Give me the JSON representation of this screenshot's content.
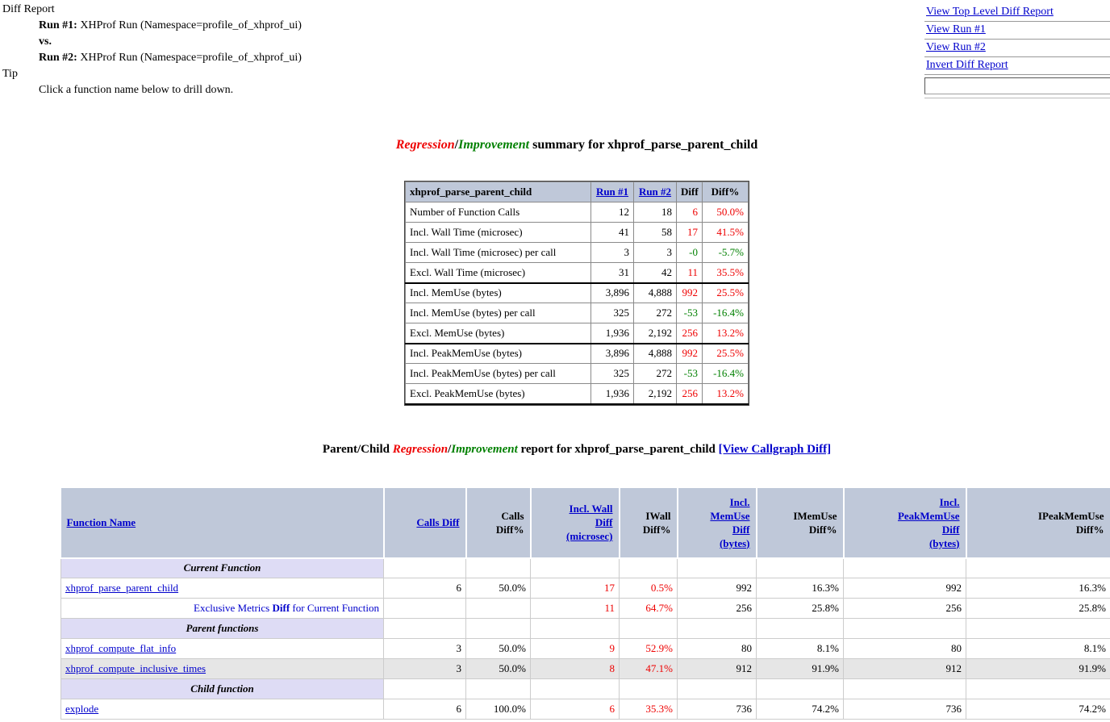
{
  "colors": {
    "link": "#0000cc",
    "red": "#ee0000",
    "green": "#008000",
    "table_header_bg": "#bfc8d9",
    "section_row_bg": "#dedcf5",
    "stripe_bg": "#e6e6e6"
  },
  "header": {
    "title": "Diff Report",
    "run1_label": "Run #1:",
    "run1_text": "XHProf Run (Namespace=profile_of_xhprof_ui)",
    "vs_label": "vs.",
    "run2_label": "Run #2:",
    "run2_text": "XHProf Run (Namespace=profile_of_xhprof_ui)",
    "tip_label": "Tip",
    "tip_text": "Click a function name below to drill down."
  },
  "nav": {
    "links": [
      "View Top Level Diff Report",
      "View Run #1",
      "View Run #2",
      "Invert Diff Report"
    ],
    "input_value": ""
  },
  "summary_title": {
    "regression": "Regression",
    "slash": "/",
    "improvement": "Improvement",
    "rest": " summary for xhprof_parse_parent_child"
  },
  "summary_table": {
    "columns": [
      {
        "label": "xhprof_parse_parent_child",
        "link": false
      },
      {
        "label": "Run #1",
        "link": true
      },
      {
        "label": "Run #2",
        "link": true
      },
      {
        "label": "Diff",
        "link": false
      },
      {
        "label": "Diff%",
        "link": false
      }
    ],
    "rows": [
      {
        "metric": "Number of Function Calls",
        "run1": "12",
        "run2": "18",
        "diff": "6",
        "diff_pct": "50.0%",
        "color": "red",
        "thick_bottom": false
      },
      {
        "metric": "Incl. Wall Time (microsec)",
        "run1": "41",
        "run2": "58",
        "diff": "17",
        "diff_pct": "41.5%",
        "color": "red",
        "thick_bottom": false
      },
      {
        "metric": "Incl. Wall Time (microsec) per call",
        "run1": "3",
        "run2": "3",
        "diff": "-0",
        "diff_pct": "-5.7%",
        "color": "green",
        "thick_bottom": false
      },
      {
        "metric": "Excl. Wall Time (microsec)",
        "run1": "31",
        "run2": "42",
        "diff": "11",
        "diff_pct": "35.5%",
        "color": "red",
        "thick_bottom": true
      },
      {
        "metric": "Incl. MemUse (bytes)",
        "run1": "3,896",
        "run2": "4,888",
        "diff": "992",
        "diff_pct": "25.5%",
        "color": "red",
        "thick_bottom": false
      },
      {
        "metric": "Incl. MemUse (bytes) per call",
        "run1": "325",
        "run2": "272",
        "diff": "-53",
        "diff_pct": "-16.4%",
        "color": "green",
        "thick_bottom": false
      },
      {
        "metric": "Excl. MemUse (bytes)",
        "run1": "1,936",
        "run2": "2,192",
        "diff": "256",
        "diff_pct": "13.2%",
        "color": "red",
        "thick_bottom": true
      },
      {
        "metric": "Incl. PeakMemUse (bytes)",
        "run1": "3,896",
        "run2": "4,888",
        "diff": "992",
        "diff_pct": "25.5%",
        "color": "red",
        "thick_bottom": false
      },
      {
        "metric": "Incl. PeakMemUse (bytes) per call",
        "run1": "325",
        "run2": "272",
        "diff": "-53",
        "diff_pct": "-16.4%",
        "color": "green",
        "thick_bottom": false
      },
      {
        "metric": "Excl. PeakMemUse (bytes)",
        "run1": "1,936",
        "run2": "2,192",
        "diff": "256",
        "diff_pct": "13.2%",
        "color": "red",
        "thick_bottom": true
      }
    ]
  },
  "report_title": {
    "prefix": "Parent/Child ",
    "regression": "Regression",
    "slash": "/",
    "improvement": "Improvement",
    "rest": " report for xhprof_parse_parent_child ",
    "callgraph_link": "[View Callgraph Diff]"
  },
  "report_table": {
    "columns": [
      {
        "lines": [
          "Function Name"
        ],
        "link": true
      },
      {
        "lines": [
          "Calls Diff"
        ],
        "link": true
      },
      {
        "lines": [
          "Calls",
          "Diff%"
        ],
        "link": false
      },
      {
        "lines": [
          "Incl. Wall",
          "Diff",
          "(microsec)"
        ],
        "link": true
      },
      {
        "lines": [
          "IWall",
          "Diff%"
        ],
        "link": false
      },
      {
        "lines": [
          "Incl.",
          "MemUse",
          "Diff",
          "(bytes)"
        ],
        "link": true
      },
      {
        "lines": [
          "IMemUse",
          "Diff%"
        ],
        "link": false
      },
      {
        "lines": [
          "Incl.",
          "PeakMemUse",
          "Diff",
          "(bytes)"
        ],
        "link": true
      },
      {
        "lines": [
          "IPeakMemUse",
          "Diff%"
        ],
        "link": false
      }
    ],
    "rows": [
      {
        "type": "section",
        "label": "Current Function"
      },
      {
        "type": "function",
        "name": "xhprof_parse_parent_child",
        "stripe": false,
        "cells": [
          {
            "v": "6"
          },
          {
            "v": "50.0%"
          },
          {
            "v": "17",
            "c": "red"
          },
          {
            "v": "0.5%",
            "c": "red"
          },
          {
            "v": "992"
          },
          {
            "v": "16.3%"
          },
          {
            "v": "992"
          },
          {
            "v": "16.3%"
          }
        ]
      },
      {
        "type": "note",
        "prefix": "Exclusive Metrics ",
        "bold": "Diff",
        "suffix": " for Current Function",
        "cells": [
          {
            "v": ""
          },
          {
            "v": ""
          },
          {
            "v": "11",
            "c": "red"
          },
          {
            "v": "64.7%",
            "c": "red"
          },
          {
            "v": "256"
          },
          {
            "v": "25.8%"
          },
          {
            "v": "256"
          },
          {
            "v": "25.8%"
          }
        ]
      },
      {
        "type": "section",
        "label": "Parent functions"
      },
      {
        "type": "function",
        "name": "xhprof_compute_flat_info",
        "stripe": false,
        "cells": [
          {
            "v": "3"
          },
          {
            "v": "50.0%"
          },
          {
            "v": "9",
            "c": "red"
          },
          {
            "v": "52.9%",
            "c": "red"
          },
          {
            "v": "80"
          },
          {
            "v": "8.1%"
          },
          {
            "v": "80"
          },
          {
            "v": "8.1%"
          }
        ]
      },
      {
        "type": "function",
        "name": "xhprof_compute_inclusive_times",
        "stripe": true,
        "cells": [
          {
            "v": "3"
          },
          {
            "v": "50.0%"
          },
          {
            "v": "8",
            "c": "red"
          },
          {
            "v": "47.1%",
            "c": "red"
          },
          {
            "v": "912"
          },
          {
            "v": "91.9%"
          },
          {
            "v": "912"
          },
          {
            "v": "91.9%"
          }
        ]
      },
      {
        "type": "section",
        "label": "Child function"
      },
      {
        "type": "function",
        "name": "explode",
        "stripe": false,
        "cells": [
          {
            "v": "6"
          },
          {
            "v": "100.0%"
          },
          {
            "v": "6",
            "c": "red"
          },
          {
            "v": "35.3%",
            "c": "red"
          },
          {
            "v": "736"
          },
          {
            "v": "74.2%"
          },
          {
            "v": "736"
          },
          {
            "v": "74.2%"
          }
        ]
      }
    ]
  }
}
